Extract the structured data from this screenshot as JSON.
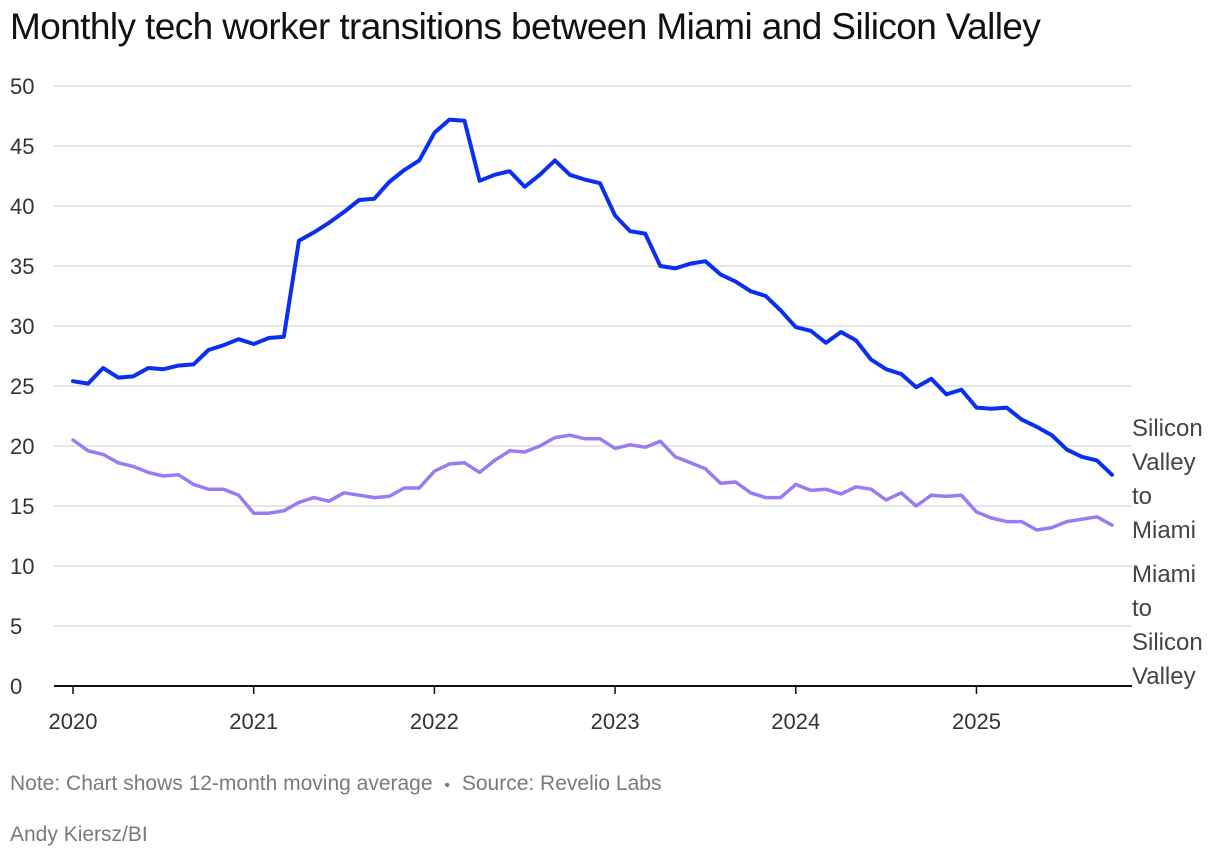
{
  "title": "Monthly tech worker transitions between Miami and Silicon Valley",
  "note": "Note: Chart shows 12-month moving average",
  "separator": "•",
  "source": "Source: Revelio Labs",
  "credit": "Andy Kiersz/BI",
  "colors": {
    "sv_to_miami": "#0a2ff0",
    "miami_to_sv": "#9b7bf2",
    "grid": "#dddddd",
    "axis": "#111111"
  },
  "chart_data": {
    "type": "line",
    "title": "Monthly tech worker transitions between Miami and Silicon Valley",
    "xlabel": "",
    "ylabel": "",
    "ylim": [
      0,
      50
    ],
    "yticks": [
      0,
      5,
      10,
      15,
      20,
      25,
      30,
      35,
      40,
      45,
      50
    ],
    "xticks": [
      "2020",
      "2021",
      "2022",
      "2023",
      "2024",
      "2025"
    ],
    "x_start": "2020-01",
    "x_end": "2025-10",
    "series": [
      {
        "name": "Silicon Valley to Miami",
        "label_lines": [
          "Silicon",
          "Valley",
          "to",
          "Miami"
        ],
        "values": [
          25.4,
          25.2,
          26.5,
          25.7,
          25.8,
          26.5,
          26.4,
          26.7,
          26.8,
          28.0,
          28.4,
          28.9,
          28.5,
          29.0,
          29.1,
          37.1,
          37.8,
          38.6,
          39.5,
          40.5,
          40.6,
          42.0,
          43.0,
          43.8,
          46.1,
          47.2,
          47.1,
          42.1,
          42.6,
          42.9,
          41.6,
          42.6,
          43.8,
          42.6,
          42.2,
          41.9,
          39.2,
          37.9,
          37.7,
          35.0,
          34.8,
          35.2,
          35.4,
          34.3,
          33.7,
          32.9,
          32.5,
          31.3,
          29.9,
          29.6,
          28.6,
          29.5,
          28.8,
          27.2,
          26.4,
          26.0,
          24.9,
          25.6,
          24.3,
          24.7,
          23.2,
          23.1,
          23.2,
          22.2,
          21.6,
          20.9,
          19.7,
          19.1,
          18.8,
          17.6
        ]
      },
      {
        "name": "Miami to Silicon Valley",
        "label_lines": [
          "Miami",
          "to",
          "Silicon",
          "Valley"
        ],
        "values": [
          20.5,
          19.6,
          19.3,
          18.6,
          18.3,
          17.8,
          17.5,
          17.6,
          16.8,
          16.4,
          16.4,
          15.9,
          14.4,
          14.4,
          14.6,
          15.3,
          15.7,
          15.4,
          16.1,
          15.9,
          15.7,
          15.8,
          16.5,
          16.5,
          17.9,
          18.5,
          18.6,
          17.8,
          18.8,
          19.6,
          19.5,
          20.0,
          20.7,
          20.9,
          20.6,
          20.6,
          19.8,
          20.1,
          19.9,
          20.4,
          19.1,
          18.6,
          18.1,
          16.9,
          17.0,
          16.1,
          15.7,
          15.7,
          16.8,
          16.3,
          16.4,
          16.0,
          16.6,
          16.4,
          15.5,
          16.1,
          15.0,
          15.9,
          15.8,
          15.9,
          14.5,
          14.0,
          13.7,
          13.7,
          13.0,
          13.2,
          13.7,
          13.9,
          14.1,
          13.4
        ]
      }
    ]
  }
}
